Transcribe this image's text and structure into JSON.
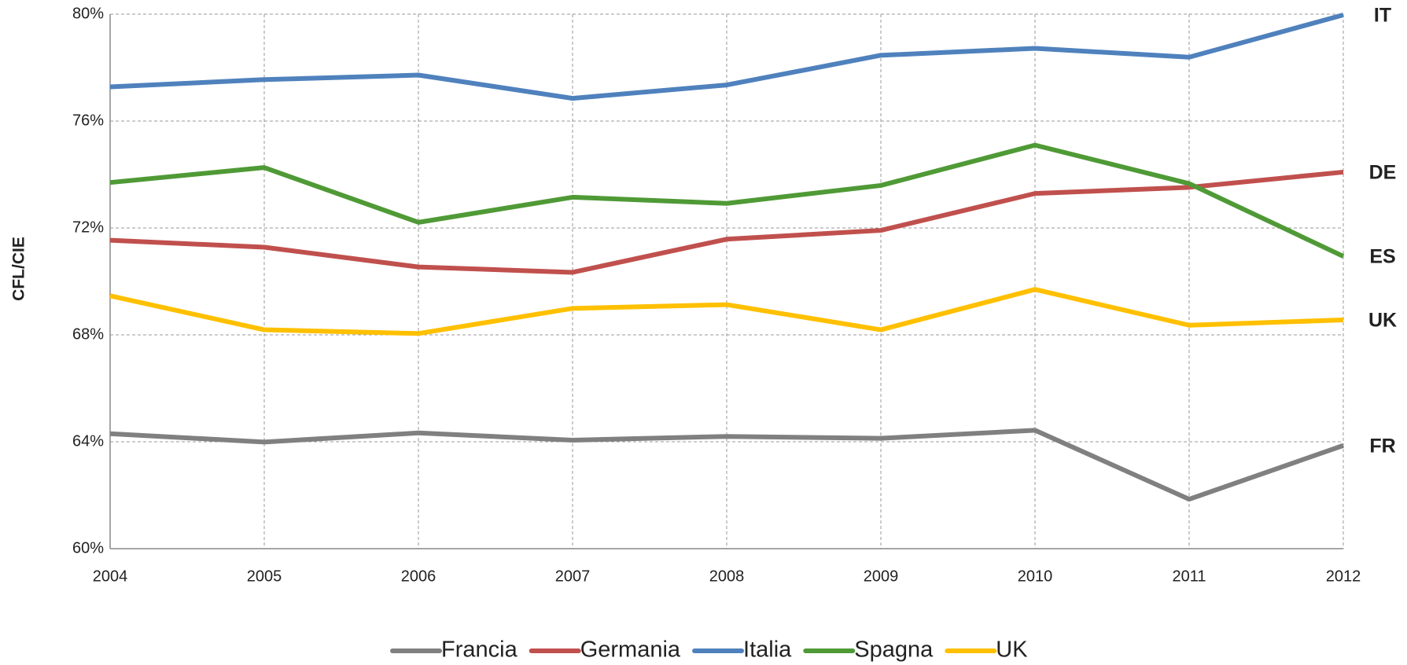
{
  "chart_data": {
    "type": "line",
    "y_label": "CFL/CIE",
    "x": [
      2004,
      2005,
      2006,
      2007,
      2008,
      2009,
      2010,
      2011,
      2012
    ],
    "xlim": [
      2004,
      2012
    ],
    "xticks": [
      2004,
      2005,
      2006,
      2007,
      2008,
      2009,
      2010,
      2011,
      2012
    ],
    "ylim": [
      60,
      80
    ],
    "yticks": [
      {
        "value": 60,
        "label": "60%"
      },
      {
        "value": 64,
        "label": "64%"
      },
      {
        "value": 68,
        "label": "68%"
      },
      {
        "value": 72,
        "label": "72%"
      },
      {
        "value": 76,
        "label": "76%"
      },
      {
        "value": 80,
        "label": "80%"
      }
    ],
    "grid": true,
    "legend": "bottom",
    "series": [
      {
        "name": "Francia",
        "color": "#808080",
        "end_label": "FR",
        "values": [
          64.3,
          63.99,
          64.33,
          64.06,
          64.2,
          64.13,
          64.43,
          61.85,
          63.86
        ]
      },
      {
        "name": "Germania",
        "color": "#c0504d",
        "end_label": "DE",
        "values": [
          71.54,
          71.28,
          70.54,
          70.34,
          71.58,
          71.91,
          73.29,
          73.52,
          74.09
        ]
      },
      {
        "name": "Italia",
        "color": "#4f81bd",
        "end_label": "IT",
        "values": [
          77.28,
          77.55,
          77.72,
          76.85,
          77.35,
          78.46,
          78.72,
          78.39,
          79.97
        ]
      },
      {
        "name": "Spagna",
        "color": "#4f9a36",
        "end_label": "ES",
        "values": [
          73.7,
          74.26,
          72.21,
          73.15,
          72.92,
          73.59,
          75.1,
          73.66,
          70.94
        ]
      },
      {
        "name": "UK",
        "color": "#ffc000",
        "end_label": "UK",
        "values": [
          69.46,
          68.19,
          68.05,
          68.99,
          69.13,
          68.19,
          69.7,
          68.36,
          68.56
        ]
      }
    ]
  }
}
